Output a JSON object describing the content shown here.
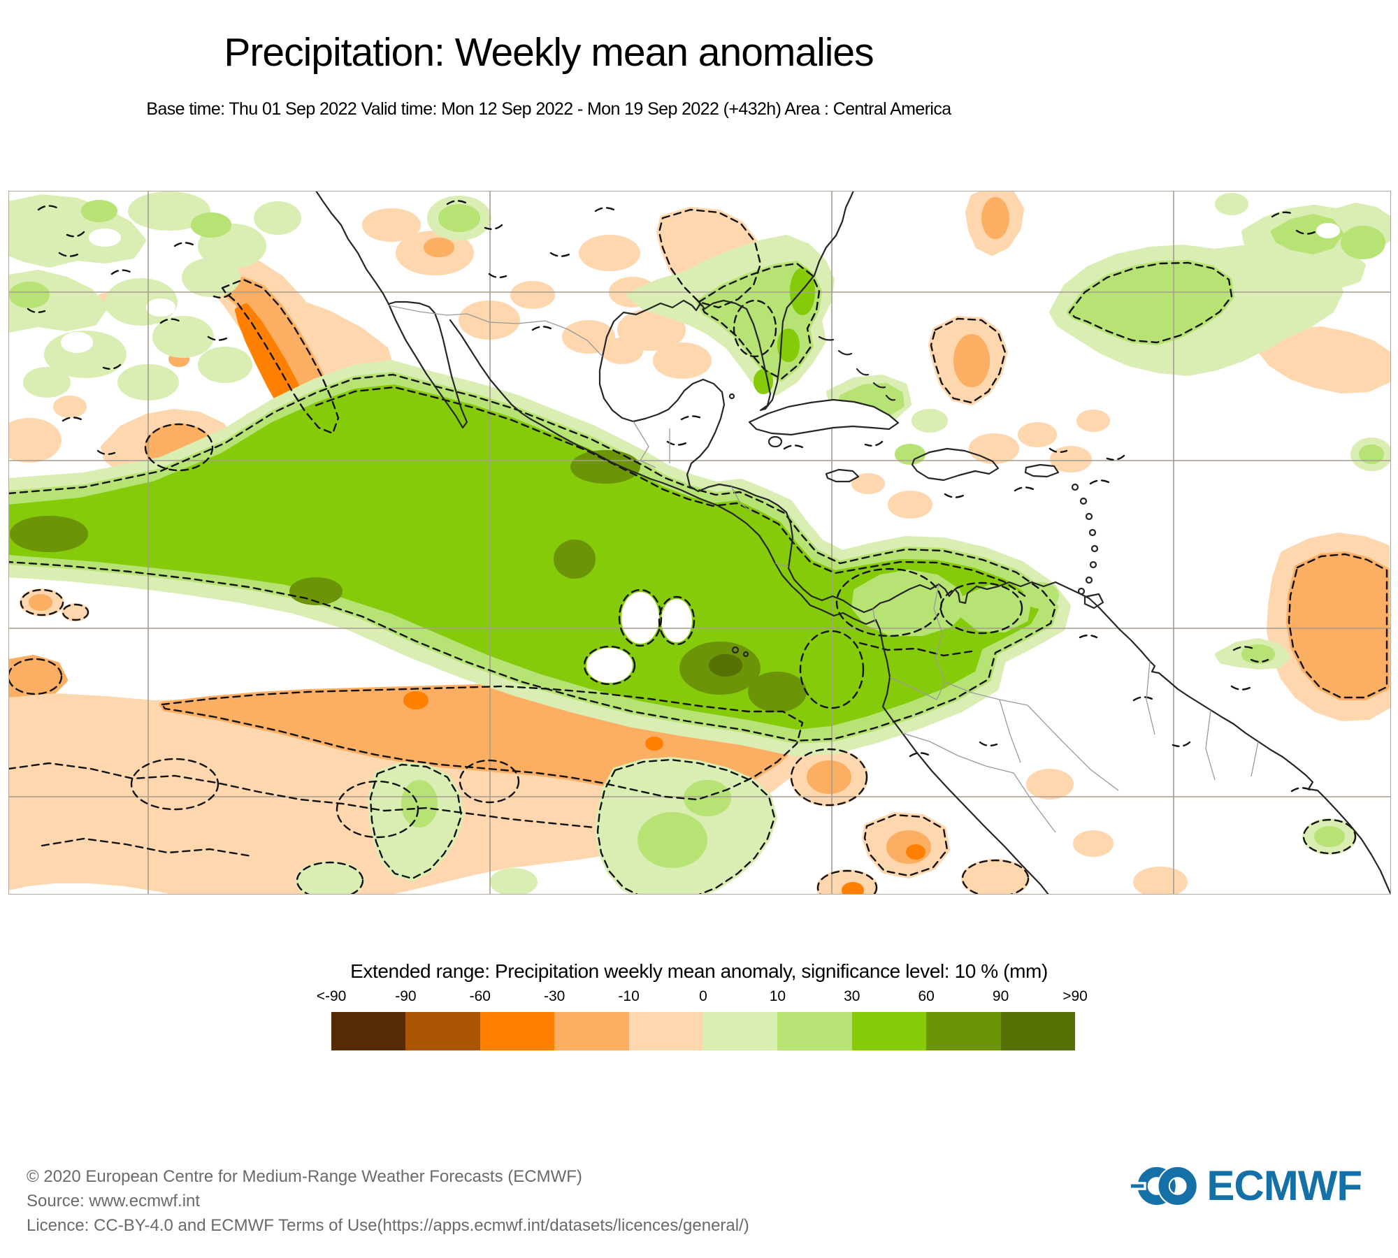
{
  "title": "Precipitation: Weekly mean anomalies",
  "subtitle": "Base time: Thu 01 Sep 2022 Valid time: Mon 12 Sep 2022 - Mon 19 Sep 2022 (+432h) Area : Central America",
  "map": {
    "gridline_color": "#a59c8e",
    "coastline_color": "#262626",
    "border_color": "#9a9a9a",
    "contour_color": "#111111",
    "frame_color": "#b0a79a"
  },
  "legend": {
    "title": "Extended range: Precipitation weekly mean anomaly, significance level: 10 % (mm)",
    "tick_labels": [
      "<-90",
      "-90",
      "-60",
      "-30",
      "-10",
      "0",
      "10",
      "30",
      "60",
      "90",
      ">90"
    ],
    "colors": [
      "#552b04",
      "#ab5504",
      "#ff8000",
      "#fcaf62",
      "#fed7ae",
      "#daeeb4",
      "#b7e375",
      "#85cb0a",
      "#6b9407",
      "#567103"
    ]
  },
  "footer": {
    "copyright": "© 2020 European Centre for Medium-Range Weather Forecasts (ECMWF)",
    "source": "Source: www.ecmwf.int",
    "licence": "Licence: CC-BY-4.0 and ECMWF Terms of Use(https://apps.ecmwf.int/datasets/licences/general/)"
  },
  "logo": {
    "text": "ECMWF",
    "color": "#1670a8"
  }
}
